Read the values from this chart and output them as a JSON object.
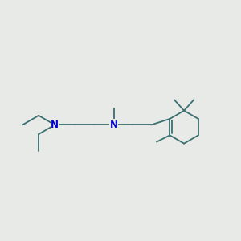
{
  "background_color": "#e8eae8",
  "bond_color": "#3a7070",
  "nitrogen_color": "#0000cc",
  "lw": 1.3,
  "figsize": [
    3.0,
    3.0
  ],
  "dpi": 100,
  "xlim": [
    -0.5,
    10.5
  ],
  "ylim": [
    1.5,
    8.5
  ]
}
